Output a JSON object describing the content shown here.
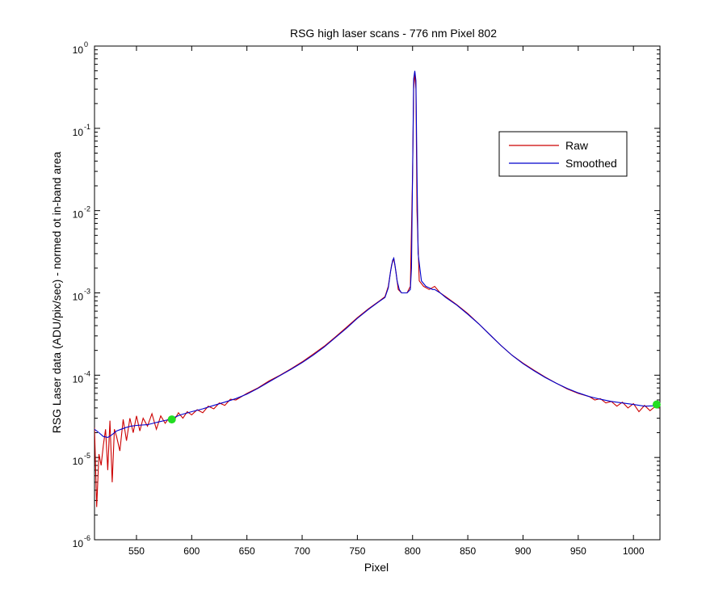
{
  "chart_data": {
    "type": "line",
    "title": "RSG high laser scans  - 776 nm    Pixel 802",
    "xlabel": "Pixel",
    "ylabel": "RSG Laser data (ADU/pix/sec) - normed ot in-band area",
    "xlim": [
      512,
      1024
    ],
    "ylim": [
      1e-06,
      1
    ],
    "yscale": "log",
    "grid": false,
    "legend_position": "top-right",
    "x_ticks": [
      550,
      600,
      650,
      700,
      750,
      800,
      850,
      900,
      950,
      1000
    ],
    "x_tick_labels": [
      "550",
      "600",
      "650",
      "700",
      "750",
      "800",
      "850",
      "900",
      "950",
      "1000"
    ],
    "y_ticks": [
      {
        "value": 1.0,
        "base": "10",
        "exp": "0"
      },
      {
        "value": 0.1,
        "base": "10",
        "exp": "-1"
      },
      {
        "value": 0.01,
        "base": "10",
        "exp": "-2"
      },
      {
        "value": 0.001,
        "base": "10",
        "exp": "-3"
      },
      {
        "value": 0.0001,
        "base": "10",
        "exp": "-4"
      },
      {
        "value": 1e-05,
        "base": "10",
        "exp": "-5"
      },
      {
        "value": 1e-06,
        "base": "10",
        "exp": "-6"
      }
    ],
    "series": [
      {
        "name": "Raw",
        "color": "#cc0000",
        "x": [
          512,
          514,
          516,
          518,
          520,
          522,
          524,
          526,
          528,
          530,
          532,
          535,
          538,
          541,
          544,
          547,
          550,
          553,
          556,
          560,
          564,
          568,
          572,
          576,
          580,
          584,
          588,
          592,
          596,
          600,
          605,
          610,
          615,
          620,
          625,
          630,
          635,
          640,
          650,
          660,
          670,
          680,
          690,
          700,
          710,
          720,
          730,
          740,
          750,
          760,
          770,
          775,
          778,
          781,
          783,
          785,
          787,
          790,
          795,
          798,
          800,
          801,
          802,
          803,
          804,
          806,
          810,
          815,
          820,
          825,
          830,
          840,
          850,
          860,
          870,
          880,
          890,
          900,
          910,
          920,
          930,
          940,
          950,
          960,
          965,
          970,
          975,
          980,
          985,
          990,
          995,
          1000,
          1005,
          1010,
          1015,
          1020,
          1024
        ],
        "y": [
          2.3e-05,
          2.5e-06,
          1.1e-05,
          8e-06,
          1.4e-05,
          2.2e-05,
          7e-06,
          2.8e-05,
          5e-06,
          2.2e-05,
          1.8e-05,
          1.2e-05,
          2.9e-05,
          1.6e-05,
          3e-05,
          2e-05,
          3.2e-05,
          2.1e-05,
          3e-05,
          2.4e-05,
          3.4e-05,
          2.2e-05,
          3.2e-05,
          2.6e-05,
          3.1e-05,
          2.8e-05,
          3.5e-05,
          3e-05,
          3.6e-05,
          3.3e-05,
          3.8e-05,
          3.5e-05,
          4.2e-05,
          3.9e-05,
          4.6e-05,
          4.3e-05,
          5.1e-05,
          5e-05,
          6e-05,
          7e-05,
          8.5e-05,
          0.0001,
          0.00012,
          0.000145,
          0.00018,
          0.000225,
          0.00029,
          0.00038,
          0.0005,
          0.00064,
          0.0008,
          0.0009,
          0.0012,
          0.0022,
          0.0026,
          0.0018,
          0.0011,
          0.001,
          0.001,
          0.0012,
          0.03,
          0.3,
          0.48,
          0.3,
          0.01,
          0.0014,
          0.0012,
          0.0011,
          0.0012,
          0.001,
          0.0009,
          0.00072,
          0.00056,
          0.00042,
          0.00031,
          0.00023,
          0.000175,
          0.00014,
          0.000115,
          9.5e-05,
          8e-05,
          6.8e-05,
          6e-05,
          5.5e-05,
          5e-05,
          5.2e-05,
          4.6e-05,
          4.8e-05,
          4.2e-05,
          4.7e-05,
          4e-05,
          4.5e-05,
          3.6e-05,
          4.3e-05,
          3.7e-05,
          4.2e-05,
          4e-05
        ]
      },
      {
        "name": "Smoothed",
        "color": "#0000cc",
        "x": [
          512,
          516,
          520,
          524,
          528,
          532,
          536,
          540,
          545,
          550,
          555,
          560,
          565,
          570,
          575,
          580,
          585,
          590,
          600,
          610,
          620,
          630,
          640,
          650,
          660,
          670,
          680,
          690,
          700,
          710,
          720,
          730,
          740,
          750,
          760,
          770,
          775,
          778,
          780,
          782,
          783,
          784,
          786,
          788,
          790,
          795,
          798,
          799,
          800,
          801,
          802,
          803,
          804,
          805,
          808,
          812,
          815,
          818,
          820,
          825,
          830,
          840,
          850,
          860,
          870,
          880,
          890,
          900,
          910,
          920,
          930,
          940,
          950,
          960,
          970,
          980,
          990,
          1000,
          1010,
          1020,
          1024
        ],
        "y": [
          2.2e-05,
          2e-05,
          1.8e-05,
          1.75e-05,
          1.9e-05,
          2.1e-05,
          2.2e-05,
          2.3e-05,
          2.4e-05,
          2.45e-05,
          2.48e-05,
          2.5e-05,
          2.6e-05,
          2.7e-05,
          2.8e-05,
          2.9e-05,
          3.1e-05,
          3.3e-05,
          3.6e-05,
          3.9e-05,
          4.3e-05,
          4.7e-05,
          5.2e-05,
          5.9e-05,
          6.9e-05,
          8.3e-05,
          9.9e-05,
          0.000118,
          0.000142,
          0.000175,
          0.00022,
          0.000285,
          0.00037,
          0.00049,
          0.00063,
          0.00079,
          0.00088,
          0.00115,
          0.0018,
          0.0025,
          0.00265,
          0.0022,
          0.0014,
          0.0011,
          0.001,
          0.001,
          0.0011,
          0.002,
          0.03,
          0.4,
          0.5,
          0.38,
          0.03,
          0.003,
          0.0014,
          0.0012,
          0.00115,
          0.0011,
          0.0011,
          0.001,
          0.00088,
          0.00071,
          0.00055,
          0.00042,
          0.00031,
          0.00023,
          0.000175,
          0.000138,
          0.000113,
          9.4e-05,
          8e-05,
          6.9e-05,
          6.1e-05,
          5.5e-05,
          5.1e-05,
          4.8e-05,
          4.6e-05,
          4.4e-05,
          4.2e-05,
          4.25e-05,
          4.3e-05
        ]
      }
    ],
    "markers": [
      {
        "x": 582,
        "y": 2.9e-05,
        "color": "#22dd22"
      },
      {
        "x": 1021,
        "y": 4.4e-05,
        "color": "#22dd22"
      }
    ]
  }
}
